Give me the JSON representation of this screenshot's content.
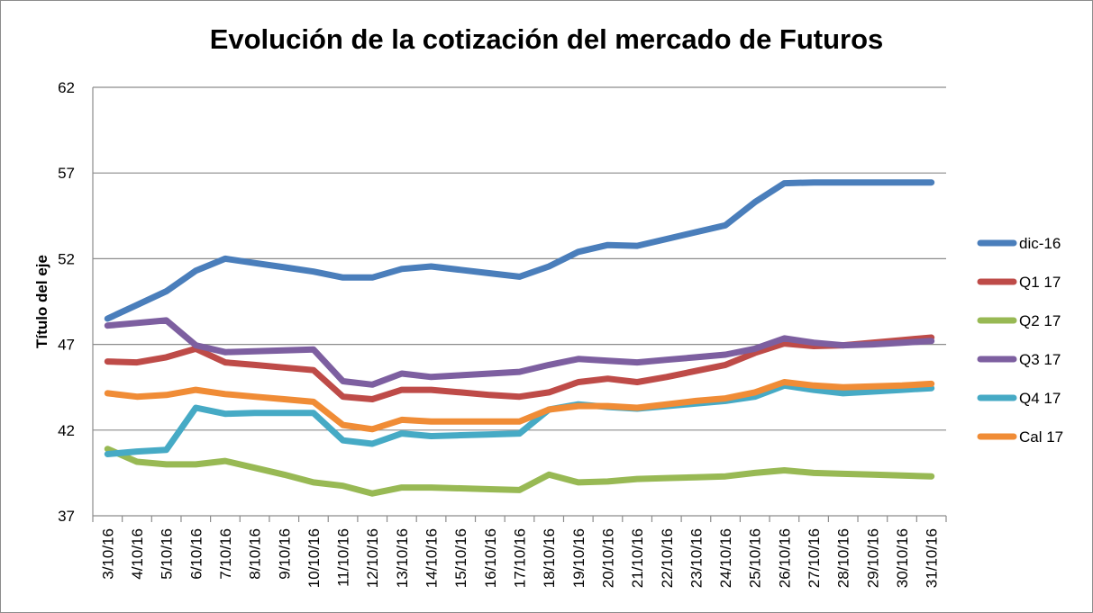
{
  "chart_data": {
    "type": "line",
    "title": "Evolución de la cotización del mercado de Futuros",
    "ylabel": "Título del eje",
    "xlabel": "",
    "ylim": [
      37,
      62
    ],
    "yticks": [
      37,
      42,
      47,
      52,
      57,
      62
    ],
    "grid": true,
    "legend": "right",
    "categories": [
      "3/10/16",
      "4/10/16",
      "5/10/16",
      "6/10/16",
      "7/10/16",
      "8/10/16",
      "9/10/16",
      "10/10/16",
      "11/10/16",
      "12/10/16",
      "13/10/16",
      "14/10/16",
      "15/10/16",
      "16/10/16",
      "17/10/16",
      "18/10/16",
      "19/10/16",
      "20/10/16",
      "21/10/16",
      "22/10/16",
      "23/10/16",
      "24/10/16",
      "25/10/16",
      "26/10/16",
      "27/10/16",
      "28/10/16",
      "29/10/16",
      "30/10/16",
      "31/10/16"
    ],
    "series": [
      {
        "name": "dic-16",
        "color": "#4a7ebb",
        "values": [
          48.5,
          49.3,
          50.1,
          51.3,
          52.0,
          51.75,
          51.5,
          51.25,
          50.9,
          50.9,
          51.4,
          51.55,
          51.35,
          51.15,
          50.95,
          51.55,
          52.4,
          52.8,
          52.75,
          53.15,
          53.55,
          53.95,
          55.3,
          56.4,
          56.45,
          56.45,
          56.45,
          56.45,
          56.45
        ]
      },
      {
        "name": "Q1 17",
        "color": "#be4b48",
        "values": [
          46.0,
          45.95,
          46.25,
          46.75,
          45.95,
          45.8,
          45.65,
          45.5,
          43.95,
          43.8,
          44.35,
          44.35,
          44.2,
          44.05,
          43.95,
          44.2,
          44.8,
          45.0,
          44.8,
          45.1,
          45.45,
          45.8,
          46.5,
          47.05,
          46.9,
          46.95,
          47.1,
          47.25,
          47.4
        ]
      },
      {
        "name": "Q2 17",
        "color": "#98b954",
        "values": [
          40.9,
          40.15,
          40.0,
          40.0,
          40.2,
          39.8,
          39.4,
          38.95,
          38.75,
          38.3,
          38.65,
          38.65,
          38.6,
          38.55,
          38.5,
          39.4,
          38.95,
          39.0,
          39.15,
          39.2,
          39.25,
          39.3,
          39.5,
          39.65,
          39.5,
          39.45,
          39.4,
          39.35,
          39.3
        ]
      },
      {
        "name": "Q3 17",
        "color": "#7d5fa0",
        "values": [
          48.1,
          48.25,
          48.4,
          46.95,
          46.55,
          46.6,
          46.65,
          46.7,
          44.85,
          44.65,
          45.3,
          45.1,
          45.2,
          45.3,
          45.4,
          45.8,
          46.15,
          46.05,
          45.95,
          46.1,
          46.25,
          46.4,
          46.75,
          47.35,
          47.1,
          46.95,
          47.0,
          47.1,
          47.2
        ]
      },
      {
        "name": "Q4 17",
        "color": "#46aac5",
        "values": [
          40.6,
          40.75,
          40.85,
          43.3,
          42.95,
          43.0,
          43.0,
          43.0,
          41.4,
          41.2,
          41.8,
          41.65,
          41.7,
          41.75,
          41.8,
          43.2,
          43.5,
          43.35,
          43.25,
          43.4,
          43.55,
          43.7,
          43.95,
          44.6,
          44.35,
          44.15,
          44.25,
          44.35,
          44.45
        ]
      },
      {
        "name": "Cal 17",
        "color": "#f08c36",
        "values": [
          44.15,
          43.95,
          44.05,
          44.35,
          44.1,
          43.95,
          43.8,
          43.65,
          42.3,
          42.05,
          42.6,
          42.5,
          42.5,
          42.5,
          42.5,
          43.2,
          43.4,
          43.4,
          43.3,
          43.5,
          43.7,
          43.85,
          44.2,
          44.8,
          44.6,
          44.5,
          44.55,
          44.6,
          44.7
        ]
      }
    ]
  }
}
